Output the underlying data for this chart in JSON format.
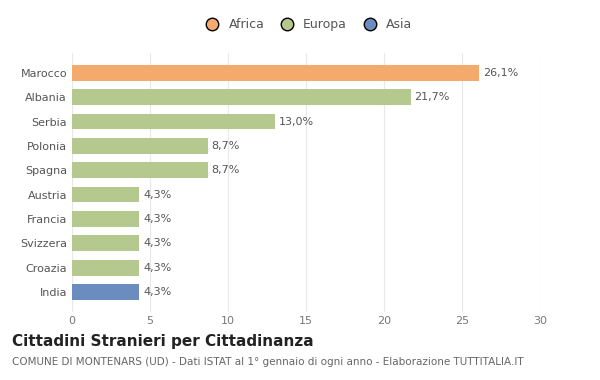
{
  "categories": [
    "Marocco",
    "Albania",
    "Serbia",
    "Polonia",
    "Spagna",
    "Austria",
    "Francia",
    "Svizzera",
    "Croazia",
    "India"
  ],
  "values": [
    26.1,
    21.7,
    13.0,
    8.7,
    8.7,
    4.3,
    4.3,
    4.3,
    4.3,
    4.3
  ],
  "labels": [
    "26,1%",
    "21,7%",
    "13,0%",
    "8,7%",
    "8,7%",
    "4,3%",
    "4,3%",
    "4,3%",
    "4,3%",
    "4,3%"
  ],
  "colors": [
    "#F4A96D",
    "#B5C98E",
    "#B5C98E",
    "#B5C98E",
    "#B5C98E",
    "#B5C98E",
    "#B5C98E",
    "#B5C98E",
    "#B5C98E",
    "#6B8CBE"
  ],
  "legend_labels": [
    "Africa",
    "Europa",
    "Asia"
  ],
  "legend_colors": [
    "#F4A96D",
    "#B5C98E",
    "#6B8CBE"
  ],
  "xlim": [
    0,
    30
  ],
  "xticks": [
    0,
    5,
    10,
    15,
    20,
    25,
    30
  ],
  "title": "Cittadini Stranieri per Cittadinanza",
  "subtitle": "COMUNE DI MONTENARS (UD) - Dati ISTAT al 1° gennaio di ogni anno - Elaborazione TUTTITALIA.IT",
  "background_color": "#ffffff",
  "grid_color": "#e8e8e8",
  "title_fontsize": 11,
  "subtitle_fontsize": 7.5,
  "label_fontsize": 8,
  "tick_fontsize": 8,
  "legend_fontsize": 9,
  "bar_height": 0.65
}
